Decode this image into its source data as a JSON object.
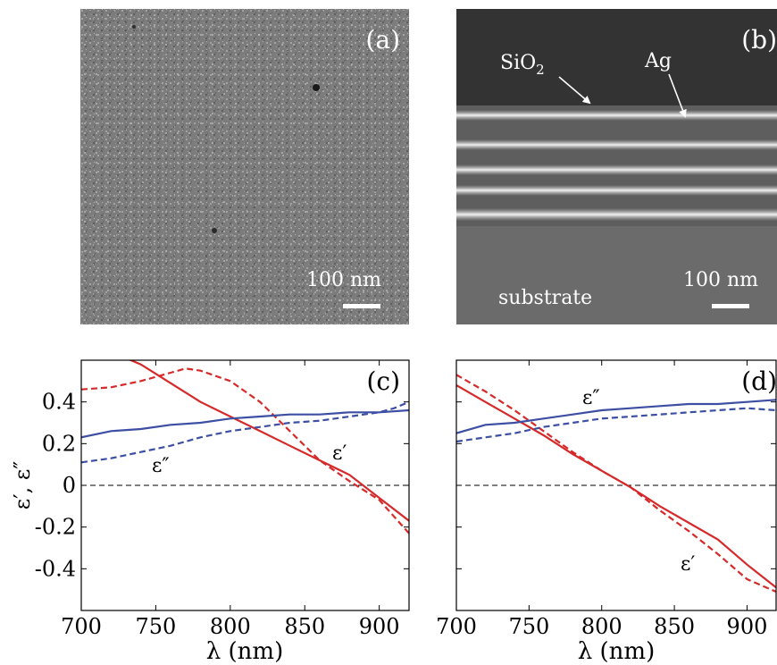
{
  "panels": {
    "a": {
      "label": "(a)",
      "scale_bar": "100 nm"
    },
    "b": {
      "label": "(b)",
      "scale_bar": "100 nm",
      "annot_sio2": "SiO",
      "annot_sio2_sub": "2",
      "annot_ag": "Ag",
      "annot_substrate": "substrate"
    }
  },
  "colors": {
    "red": "#d62a2a",
    "blue": "#3d4fa3"
  },
  "chart_data": [
    {
      "type": "line",
      "panel": "(c)",
      "xlabel": "λ (nm)",
      "ylabel": "ε′, ε″",
      "xlim": [
        700,
        920
      ],
      "ylim": [
        -0.6,
        0.6
      ],
      "xticks": [
        700,
        750,
        800,
        850,
        900
      ],
      "xtick_labels": [
        "700",
        "750",
        "800",
        "850",
        "900"
      ],
      "yticks": [
        -0.4,
        -0.2,
        0,
        0.2,
        0.4
      ],
      "ytick_labels": [
        "-0.4",
        "-0.2",
        "0",
        "0.2",
        "0.4"
      ],
      "annotations": [
        "ε″",
        "ε′"
      ],
      "series": [
        {
          "color": "red",
          "style": "solid",
          "x": [
            700,
            720,
            740,
            760,
            780,
            800,
            820,
            840,
            860,
            880,
            900,
            920
          ],
          "y": [
            0.68,
            0.64,
            0.58,
            0.49,
            0.4,
            0.33,
            0.26,
            0.19,
            0.12,
            0.05,
            -0.06,
            -0.17
          ]
        },
        {
          "color": "red",
          "style": "dashed",
          "x": [
            700,
            720,
            740,
            760,
            770,
            780,
            800,
            820,
            840,
            860,
            880,
            900,
            920
          ],
          "y": [
            0.46,
            0.47,
            0.5,
            0.54,
            0.56,
            0.55,
            0.5,
            0.4,
            0.26,
            0.12,
            0.02,
            -0.07,
            -0.23
          ]
        },
        {
          "color": "blue",
          "style": "solid",
          "x": [
            700,
            720,
            740,
            760,
            780,
            800,
            820,
            840,
            860,
            880,
            900,
            920
          ],
          "y": [
            0.23,
            0.26,
            0.27,
            0.29,
            0.3,
            0.32,
            0.33,
            0.34,
            0.34,
            0.35,
            0.35,
            0.36
          ]
        },
        {
          "color": "blue",
          "style": "dashed",
          "x": [
            700,
            720,
            740,
            760,
            780,
            800,
            820,
            840,
            860,
            880,
            900,
            910,
            920
          ],
          "y": [
            0.11,
            0.13,
            0.16,
            0.19,
            0.23,
            0.26,
            0.28,
            0.3,
            0.31,
            0.33,
            0.35,
            0.37,
            0.4
          ]
        }
      ]
    },
    {
      "type": "line",
      "panel": "(d)",
      "xlabel": "λ (nm)",
      "xlim": [
        700,
        920
      ],
      "ylim": [
        -0.6,
        0.6
      ],
      "xticks": [
        700,
        750,
        800,
        850,
        900
      ],
      "xtick_labels": [
        "700",
        "750",
        "800",
        "850",
        "900"
      ],
      "yticks": [
        -0.4,
        -0.2,
        0,
        0.2,
        0.4
      ],
      "annotations": [
        "ε″",
        "ε′"
      ],
      "series": [
        {
          "color": "red",
          "style": "solid",
          "x": [
            700,
            720,
            740,
            760,
            780,
            800,
            820,
            840,
            860,
            880,
            900,
            920
          ],
          "y": [
            0.48,
            0.4,
            0.32,
            0.24,
            0.15,
            0.07,
            -0.01,
            -0.1,
            -0.18,
            -0.26,
            -0.38,
            -0.49
          ]
        },
        {
          "color": "red",
          "style": "dashed",
          "x": [
            700,
            720,
            740,
            760,
            780,
            800,
            820,
            840,
            860,
            880,
            900,
            920
          ],
          "y": [
            0.53,
            0.45,
            0.36,
            0.26,
            0.16,
            0.07,
            -0.01,
            -0.12,
            -0.22,
            -0.33,
            -0.45,
            -0.51
          ]
        },
        {
          "color": "blue",
          "style": "solid",
          "x": [
            700,
            720,
            740,
            760,
            780,
            800,
            820,
            840,
            860,
            880,
            900,
            920
          ],
          "y": [
            0.25,
            0.29,
            0.3,
            0.32,
            0.34,
            0.36,
            0.37,
            0.38,
            0.39,
            0.39,
            0.4,
            0.41
          ]
        },
        {
          "color": "blue",
          "style": "dashed",
          "x": [
            700,
            720,
            740,
            760,
            780,
            800,
            820,
            840,
            860,
            880,
            900,
            920
          ],
          "y": [
            0.21,
            0.23,
            0.25,
            0.28,
            0.3,
            0.32,
            0.33,
            0.34,
            0.35,
            0.36,
            0.37,
            0.36
          ]
        }
      ]
    }
  ]
}
